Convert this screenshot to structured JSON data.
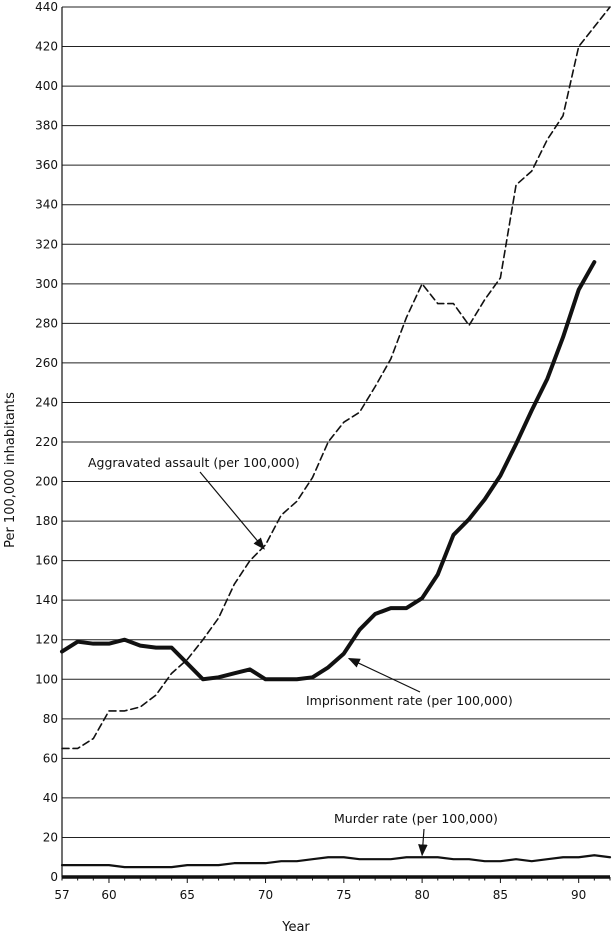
{
  "chart_data": {
    "type": "line",
    "xlabel": "Year",
    "ylabel": "Per 100,000 inhabitants",
    "xlim": [
      57,
      92
    ],
    "ylim": [
      0,
      440
    ],
    "grid": true,
    "x_ticks": [
      {
        "value": 57,
        "label": "57"
      },
      {
        "value": 60,
        "label": "60"
      },
      {
        "value": 65,
        "label": "65"
      },
      {
        "value": 70,
        "label": "70"
      },
      {
        "value": 75,
        "label": "75"
      },
      {
        "value": 80,
        "label": "80"
      },
      {
        "value": 85,
        "label": "85"
      },
      {
        "value": 90,
        "label": "90"
      }
    ],
    "y_ticks": [
      {
        "value": 0,
        "label": "0"
      },
      {
        "value": 20,
        "label": "20"
      },
      {
        "value": 40,
        "label": "40"
      },
      {
        "value": 60,
        "label": "60"
      },
      {
        "value": 80,
        "label": "80"
      },
      {
        "value": 100,
        "label": "100"
      },
      {
        "value": 120,
        "label": "120"
      },
      {
        "value": 140,
        "label": "140"
      },
      {
        "value": 160,
        "label": "160"
      },
      {
        "value": 180,
        "label": "180"
      },
      {
        "value": 200,
        "label": "200"
      },
      {
        "value": 220,
        "label": "220"
      },
      {
        "value": 240,
        "label": "240"
      },
      {
        "value": 260,
        "label": "260"
      },
      {
        "value": 280,
        "label": "280"
      },
      {
        "value": 300,
        "label": "300"
      },
      {
        "value": 320,
        "label": "320"
      },
      {
        "value": 340,
        "label": "340"
      },
      {
        "value": 360,
        "label": "360"
      },
      {
        "value": 380,
        "label": "380"
      },
      {
        "value": 400,
        "label": "400"
      },
      {
        "value": 420,
        "label": "420"
      },
      {
        "value": 440,
        "label": "440"
      }
    ],
    "series": [
      {
        "name": "Aggravated assault (per 100,000)",
        "style": "dashed",
        "color": "#111111",
        "points": [
          [
            57,
            65
          ],
          [
            58,
            65
          ],
          [
            59,
            70
          ],
          [
            60,
            84
          ],
          [
            61,
            84
          ],
          [
            62,
            86
          ],
          [
            63,
            92
          ],
          [
            64,
            103
          ],
          [
            65,
            110
          ],
          [
            66,
            120
          ],
          [
            67,
            131
          ],
          [
            68,
            148
          ],
          [
            69,
            160
          ],
          [
            70,
            168
          ],
          [
            71,
            183
          ],
          [
            72,
            190
          ],
          [
            73,
            202
          ],
          [
            74,
            220
          ],
          [
            75,
            230
          ],
          [
            76,
            235
          ],
          [
            77,
            248
          ],
          [
            78,
            262
          ],
          [
            79,
            283
          ],
          [
            80,
            300
          ],
          [
            81,
            290
          ],
          [
            82,
            290
          ],
          [
            83,
            279
          ],
          [
            84,
            292
          ],
          [
            85,
            303
          ],
          [
            86,
            350
          ],
          [
            87,
            357
          ],
          [
            88,
            373
          ],
          [
            89,
            385
          ],
          [
            90,
            420
          ],
          [
            91,
            430
          ],
          [
            92,
            440
          ]
        ]
      },
      {
        "name": "Imprisonment rate (per 100,000)",
        "style": "solid-thick",
        "color": "#111111",
        "points": [
          [
            57,
            114
          ],
          [
            58,
            119
          ],
          [
            59,
            118
          ],
          [
            60,
            118
          ],
          [
            61,
            120
          ],
          [
            62,
            117
          ],
          [
            63,
            116
          ],
          [
            64,
            116
          ],
          [
            65,
            108
          ],
          [
            66,
            100
          ],
          [
            67,
            101
          ],
          [
            68,
            103
          ],
          [
            69,
            105
          ],
          [
            70,
            100
          ],
          [
            71,
            100
          ],
          [
            72,
            100
          ],
          [
            73,
            101
          ],
          [
            74,
            106
          ],
          [
            75,
            113
          ],
          [
            76,
            125
          ],
          [
            77,
            133
          ],
          [
            78,
            136
          ],
          [
            79,
            136
          ],
          [
            80,
            141
          ],
          [
            81,
            153
          ],
          [
            82,
            173
          ],
          [
            83,
            181
          ],
          [
            84,
            191
          ],
          [
            85,
            203
          ],
          [
            86,
            219
          ],
          [
            87,
            236
          ],
          [
            88,
            252
          ],
          [
            89,
            273
          ],
          [
            90,
            297
          ],
          [
            91,
            311
          ]
        ]
      },
      {
        "name": "Murder rate (per 100,000)",
        "style": "solid",
        "color": "#111111",
        "points": [
          [
            57,
            6
          ],
          [
            58,
            6
          ],
          [
            59,
            6
          ],
          [
            60,
            6
          ],
          [
            61,
            5
          ],
          [
            62,
            5
          ],
          [
            63,
            5
          ],
          [
            64,
            5
          ],
          [
            65,
            6
          ],
          [
            66,
            6
          ],
          [
            67,
            6
          ],
          [
            68,
            7
          ],
          [
            69,
            7
          ],
          [
            70,
            7
          ],
          [
            71,
            8
          ],
          [
            72,
            8
          ],
          [
            73,
            9
          ],
          [
            74,
            10
          ],
          [
            75,
            10
          ],
          [
            76,
            9
          ],
          [
            77,
            9
          ],
          [
            78,
            9
          ],
          [
            79,
            10
          ],
          [
            80,
            10
          ],
          [
            81,
            10
          ],
          [
            82,
            9
          ],
          [
            83,
            9
          ],
          [
            84,
            8
          ],
          [
            85,
            8
          ],
          [
            86,
            9
          ],
          [
            87,
            8
          ],
          [
            88,
            9
          ],
          [
            89,
            10
          ],
          [
            90,
            10
          ],
          [
            91,
            11
          ],
          [
            92,
            10
          ]
        ]
      }
    ],
    "annotations": [
      {
        "text": "Aggravated assault (per 100,000)",
        "series_index": 0
      },
      {
        "text": "Imprisonment rate (per 100,000)",
        "series_index": 1
      },
      {
        "text": "Murder rate (per 100,000)",
        "series_index": 2
      }
    ]
  }
}
